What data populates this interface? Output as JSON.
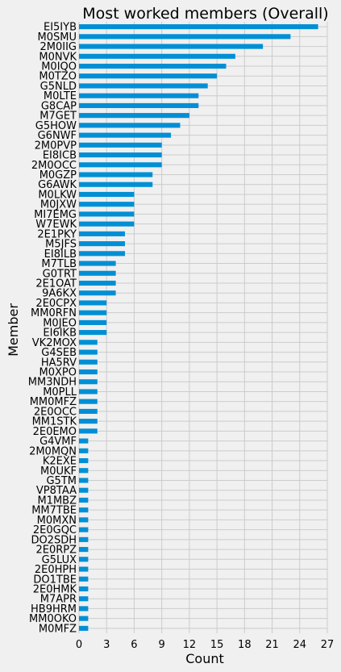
{
  "chart_data": {
    "type": "bar",
    "orientation": "horizontal",
    "title": "Most worked members (Overall)",
    "xlabel": "Count",
    "ylabel": "Member",
    "xlim": [
      0,
      27
    ],
    "xticks": [
      0,
      3,
      6,
      9,
      12,
      15,
      18,
      21,
      24,
      27
    ],
    "grid": true,
    "bar_color": "#008fd5",
    "background": "#f0f0f0",
    "categories": [
      "EI5IYB",
      "M0SMU",
      "2M0IIG",
      "M0NVK",
      "M0IQO",
      "M0TZO",
      "G5NLD",
      "M0LTE",
      "G8CAP",
      "M7GET",
      "G5HOW",
      "G6NWF",
      "2M0PVP",
      "EI8ICB",
      "2M0OCC",
      "M0GZP",
      "G6AWK",
      "M0LKW",
      "M0JXW",
      "MI7EMG",
      "W7EWK",
      "2E1PKY",
      "M5JFS",
      "EI8ILB",
      "M7TLB",
      "G0TRT",
      "2E1OAT",
      "9A6KX",
      "2E0CPX",
      "MM0RFN",
      "M0JEO",
      "EI6IKB",
      "VK2MOX",
      "G4SEB",
      "HA5RV",
      "M0XPO",
      "MM3NDH",
      "M0PLL",
      "MM0MFZ",
      "2E0OCC",
      "MM1STK",
      "2E0EMO",
      "G4VMF",
      "2M0MQN",
      "K2EXE",
      "M0UKF",
      "G5TM",
      "VP8TAA",
      "M1MBZ",
      "MM7TBE",
      "M0MXN",
      "2E0GQC",
      "DO2SDH",
      "2E0RPZ",
      "G5LUX",
      "2E0HPH",
      "DO1TBE",
      "2E0HMK",
      "M7APR",
      "HB9HRM",
      "MM0OKO",
      "M0MFZ"
    ],
    "values": [
      26,
      23,
      20,
      17,
      16,
      15,
      14,
      13,
      13,
      12,
      11,
      10,
      9,
      9,
      9,
      8,
      8,
      6,
      6,
      6,
      6,
      5,
      5,
      5,
      4,
      4,
      4,
      4,
      3,
      3,
      3,
      3,
      2,
      2,
      2,
      2,
      2,
      2,
      2,
      2,
      2,
      2,
      1,
      1,
      1,
      1,
      1,
      1,
      1,
      1,
      1,
      1,
      1,
      1,
      1,
      1,
      1,
      1,
      1,
      1,
      1,
      1
    ]
  }
}
